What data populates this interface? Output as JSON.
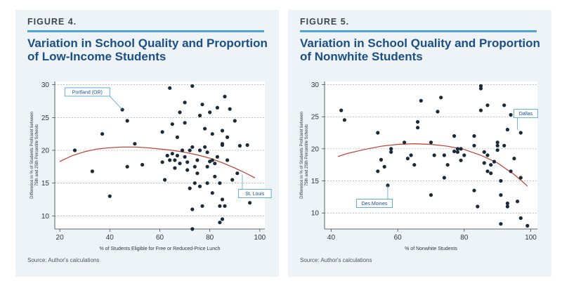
{
  "panels": [
    {
      "figure_label": "FIGURE 4.",
      "title": "Variation in School Quality and Proportion of Low-Income Students",
      "source": "Source: Author's calculations"
    },
    {
      "figure_label": "FIGURE 5.",
      "title": "Variation in School Quality and Proportion of Nonwhite Students",
      "source": "Source: Author's calculations"
    }
  ],
  "colors": {
    "title": "#1a4f88",
    "rule": "#4ea3d6",
    "points": "#1b2a38",
    "trend": "#c0392b",
    "callout": "#4ea3d6",
    "panel_bg": "#eef3f7"
  },
  "chart_data": [
    {
      "type": "scatter",
      "title": "",
      "xlabel": "% of Students Eligible for Free or Reduced-Price Lunch",
      "ylabel": "Difference in % of Students Proficient between 75th and 25th Percentile Schools",
      "xlim": [
        18,
        102
      ],
      "ylim": [
        8,
        30.5
      ],
      "xticks": [
        20,
        40,
        60,
        80,
        100
      ],
      "yticks": [
        10,
        15,
        20,
        25,
        30
      ],
      "grid": "y-dashed",
      "points": [
        [
          26,
          20
        ],
        [
          33,
          16.8
        ],
        [
          37,
          22.5
        ],
        [
          40,
          13
        ],
        [
          45,
          26.2
        ],
        [
          47,
          24.5
        ],
        [
          47,
          17.5
        ],
        [
          50,
          21
        ],
        [
          53,
          17.8
        ],
        [
          61,
          22.8
        ],
        [
          61,
          18.2
        ],
        [
          62,
          15.5
        ],
        [
          63,
          19.2
        ],
        [
          64,
          18.5
        ],
        [
          64,
          29.5
        ],
        [
          65,
          24
        ],
        [
          65,
          19.5
        ],
        [
          66,
          18.5
        ],
        [
          66,
          17.3
        ],
        [
          67,
          19.2
        ],
        [
          67,
          22
        ],
        [
          68,
          25.8
        ],
        [
          68,
          18
        ],
        [
          69,
          20
        ],
        [
          70,
          24.2
        ],
        [
          70,
          27.3
        ],
        [
          70,
          19
        ],
        [
          71,
          18.2
        ],
        [
          71,
          17
        ],
        [
          72,
          14.2
        ],
        [
          72,
          20
        ],
        [
          73,
          11
        ],
        [
          73,
          8
        ],
        [
          73,
          29.8
        ],
        [
          73,
          20.5
        ],
        [
          74,
          17.5
        ],
        [
          74,
          15
        ],
        [
          75,
          18.5
        ],
        [
          75,
          16.5
        ],
        [
          76,
          14.5
        ],
        [
          76,
          20
        ],
        [
          76,
          25.3
        ],
        [
          77,
          27
        ],
        [
          77,
          11.5
        ],
        [
          78,
          23.3
        ],
        [
          78,
          20.5
        ],
        [
          79,
          17.5
        ],
        [
          79,
          15
        ],
        [
          79,
          19.7
        ],
        [
          80,
          18.3
        ],
        [
          80,
          25.8
        ],
        [
          81,
          22.5
        ],
        [
          81,
          18.5
        ],
        [
          81,
          13.5
        ],
        [
          82,
          18
        ],
        [
          82,
          16
        ],
        [
          83,
          19
        ],
        [
          83,
          26.5
        ],
        [
          84,
          9
        ],
        [
          84,
          11.5
        ],
        [
          84,
          15
        ],
        [
          85,
          9.5
        ],
        [
          85,
          12.5
        ],
        [
          85,
          20.8
        ],
        [
          85,
          21
        ],
        [
          85,
          23
        ],
        [
          86,
          28.2
        ],
        [
          86,
          11.5
        ],
        [
          87,
          18.5
        ],
        [
          87,
          22
        ],
        [
          88,
          26.3
        ],
        [
          89,
          15.5
        ],
        [
          90,
          24.5
        ],
        [
          91,
          16.5
        ],
        [
          92,
          20.7
        ],
        [
          95,
          20.8
        ],
        [
          96,
          12
        ]
      ],
      "trend": [
        [
          20,
          18.3
        ],
        [
          25,
          19.2
        ],
        [
          30,
          19.8
        ],
        [
          35,
          20.2
        ],
        [
          40,
          20.4
        ],
        [
          45,
          20.5
        ],
        [
          50,
          20.5
        ],
        [
          55,
          20.4
        ],
        [
          60,
          20.2
        ],
        [
          65,
          20
        ],
        [
          70,
          19.7
        ],
        [
          75,
          19.3
        ],
        [
          80,
          18.8
        ],
        [
          85,
          18.1
        ],
        [
          90,
          17.3
        ],
        [
          95,
          16.4
        ],
        [
          98,
          15.8
        ]
      ],
      "callouts": [
        {
          "label": "Portland (OR)",
          "point": [
            45,
            26.2
          ],
          "box_at": [
            31,
            28.9
          ]
        },
        {
          "label": "St. Louis",
          "point": [
            93,
            16.3
          ],
          "box_at": [
            98,
            13.4
          ]
        }
      ]
    },
    {
      "type": "scatter",
      "title": "",
      "xlabel": "% of Nonwhite Students",
      "ylabel": "Difference in % of Students Proficient between 75th and 25th Percentile Schools",
      "xlim": [
        38,
        102
      ],
      "ylim": [
        7.5,
        30.5
      ],
      "xticks": [
        40,
        60,
        80,
        100
      ],
      "yticks": [
        10,
        15,
        20,
        25,
        30
      ],
      "grid": "y-dashed",
      "points": [
        [
          43,
          26
        ],
        [
          44,
          24.5
        ],
        [
          54,
          22.5
        ],
        [
          54,
          16.5
        ],
        [
          55,
          18.3
        ],
        [
          56,
          17.2
        ],
        [
          57,
          14.3
        ],
        [
          58,
          19.5
        ],
        [
          58,
          20
        ],
        [
          62,
          21
        ],
        [
          63,
          18.5
        ],
        [
          64,
          19
        ],
        [
          65,
          17.5
        ],
        [
          66,
          23.3
        ],
        [
          66,
          24.2
        ],
        [
          67,
          27.5
        ],
        [
          70,
          21
        ],
        [
          70,
          12.8
        ],
        [
          71,
          19
        ],
        [
          72,
          25.8
        ],
        [
          73,
          28
        ],
        [
          74,
          19
        ],
        [
          74,
          15.5
        ],
        [
          75,
          17.5
        ],
        [
          77,
          19.6
        ],
        [
          77,
          22
        ],
        [
          78,
          19.5
        ],
        [
          78,
          20
        ],
        [
          79,
          20
        ],
        [
          79,
          18.2
        ],
        [
          80,
          19
        ],
        [
          83,
          22
        ],
        [
          83,
          20.5
        ],
        [
          83,
          13.5
        ],
        [
          84,
          11
        ],
        [
          85,
          26
        ],
        [
          85,
          29.4
        ],
        [
          85,
          29.8
        ],
        [
          86,
          19.5
        ],
        [
          86,
          17.8
        ],
        [
          87,
          16.5
        ],
        [
          87,
          19
        ],
        [
          87,
          26.8
        ],
        [
          88,
          17.5
        ],
        [
          88,
          16.2
        ],
        [
          89,
          18
        ],
        [
          90,
          20.5
        ],
        [
          90,
          19.8
        ],
        [
          90,
          21
        ],
        [
          91,
          15
        ],
        [
          91,
          12.8
        ],
        [
          91,
          8.3
        ],
        [
          92,
          20.5
        ],
        [
          92,
          26.8
        ],
        [
          93,
          23
        ],
        [
          93,
          11
        ],
        [
          93,
          11.5
        ],
        [
          94,
          25.3
        ],
        [
          94,
          16.5
        ],
        [
          95,
          18.5
        ],
        [
          96,
          11.8
        ],
        [
          97,
          9.2
        ],
        [
          97,
          15.5
        ],
        [
          97,
          22.5
        ],
        [
          99,
          8
        ]
      ],
      "trend": [
        [
          42,
          18.8
        ],
        [
          45,
          19.3
        ],
        [
          50,
          19.9
        ],
        [
          55,
          20.4
        ],
        [
          60,
          20.7
        ],
        [
          65,
          20.8
        ],
        [
          70,
          20.7
        ],
        [
          75,
          20.4
        ],
        [
          80,
          19.9
        ],
        [
          85,
          19
        ],
        [
          90,
          17.8
        ],
        [
          95,
          16
        ],
        [
          99,
          14.2
        ]
      ],
      "callouts": [
        {
          "label": "Des Moines",
          "point": [
            57,
            14.3
          ],
          "box_at": [
            53,
            11.5
          ]
        },
        {
          "label": "Dallas",
          "point": [
            96,
            23
          ],
          "box_at": [
            98.5,
            25.5
          ]
        }
      ]
    }
  ]
}
